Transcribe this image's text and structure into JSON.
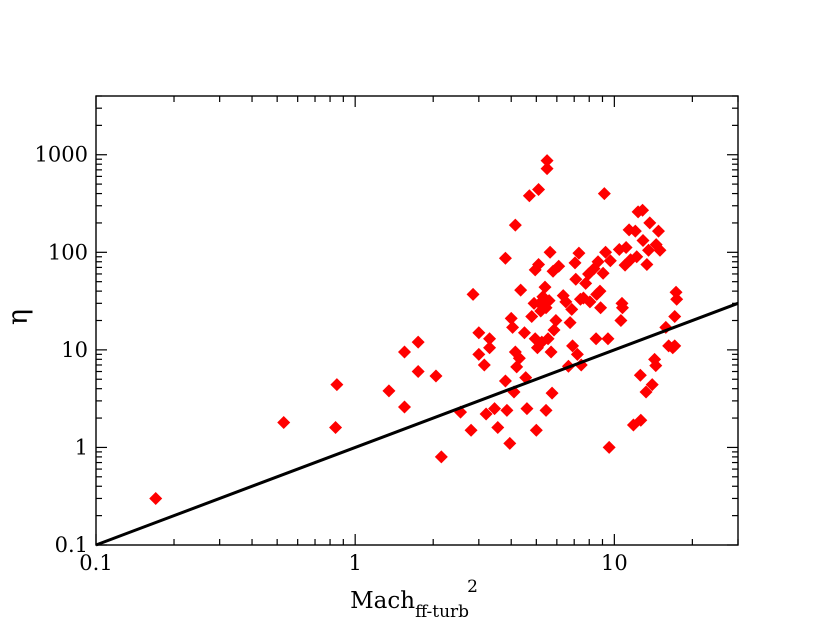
{
  "chart_data": {
    "type": "scatter",
    "title": "",
    "xlabel": "Mach",
    "xlabel_subscript": "ff-turb",
    "xlabel_superscript": "2",
    "ylabel": "η",
    "x_scale": "log",
    "y_scale": "log",
    "xlim": [
      0.1,
      30
    ],
    "ylim": [
      0.1,
      4000
    ],
    "grid": false,
    "legend": "none",
    "x_ticks": [
      {
        "value": 0.1,
        "label": "0.1"
      },
      {
        "value": 1,
        "label": "1"
      },
      {
        "value": 10,
        "label": "10"
      }
    ],
    "y_ticks": [
      {
        "value": 0.1,
        "label": "0.1"
      },
      {
        "value": 1,
        "label": "1"
      },
      {
        "value": 10,
        "label": "10"
      },
      {
        "value": 100,
        "label": "100"
      },
      {
        "value": 1000,
        "label": "1000"
      }
    ],
    "marker_color": "#ff0000",
    "line_color": "#000000",
    "line": {
      "points": [
        [
          0.1,
          0.1
        ],
        [
          30,
          30
        ]
      ]
    },
    "points": [
      [
        0.17,
        0.3
      ],
      [
        0.53,
        1.8
      ],
      [
        0.84,
        1.6
      ],
      [
        0.85,
        4.4
      ],
      [
        1.35,
        3.8
      ],
      [
        1.55,
        2.6
      ],
      [
        1.55,
        9.5
      ],
      [
        1.75,
        6.0
      ],
      [
        1.75,
        12.0
      ],
      [
        2.05,
        5.4
      ],
      [
        2.15,
        0.8
      ],
      [
        2.55,
        2.3
      ],
      [
        2.8,
        1.5
      ],
      [
        2.85,
        37
      ],
      [
        3.0,
        15
      ],
      [
        3.0,
        9.0
      ],
      [
        3.15,
        7.0
      ],
      [
        3.2,
        2.2
      ],
      [
        3.3,
        10.5
      ],
      [
        3.3,
        13
      ],
      [
        3.45,
        2.5
      ],
      [
        3.55,
        1.6
      ],
      [
        3.85,
        2.4
      ],
      [
        3.8,
        87
      ],
      [
        3.8,
        4.8
      ],
      [
        3.95,
        1.1
      ],
      [
        4.0,
        21
      ],
      [
        4.05,
        17
      ],
      [
        4.1,
        3.7
      ],
      [
        4.15,
        9.5
      ],
      [
        4.15,
        190
      ],
      [
        4.2,
        6.7
      ],
      [
        4.3,
        8.2
      ],
      [
        4.35,
        41
      ],
      [
        4.5,
        15
      ],
      [
        4.55,
        5.2
      ],
      [
        4.6,
        2.5
      ],
      [
        4.7,
        380
      ],
      [
        4.8,
        22
      ],
      [
        4.9,
        30
      ],
      [
        4.95,
        66
      ],
      [
        4.95,
        13
      ],
      [
        5.0,
        1.5
      ],
      [
        5.05,
        10.5
      ],
      [
        5.1,
        75
      ],
      [
        5.1,
        440
      ],
      [
        5.15,
        30
      ],
      [
        5.2,
        25
      ],
      [
        5.25,
        12
      ],
      [
        5.3,
        35
      ],
      [
        5.4,
        44
      ],
      [
        5.45,
        27
      ],
      [
        5.45,
        2.4
      ],
      [
        5.5,
        720
      ],
      [
        5.5,
        870
      ],
      [
        5.55,
        13
      ],
      [
        5.6,
        32
      ],
      [
        5.65,
        100
      ],
      [
        5.7,
        9.5
      ],
      [
        5.75,
        3.6
      ],
      [
        5.8,
        64
      ],
      [
        5.85,
        16
      ],
      [
        5.95,
        20
      ],
      [
        6.1,
        72
      ],
      [
        6.35,
        36
      ],
      [
        6.5,
        31
      ],
      [
        6.65,
        6.8
      ],
      [
        6.75,
        19
      ],
      [
        6.85,
        26
      ],
      [
        6.9,
        11
      ],
      [
        7.05,
        78
      ],
      [
        7.1,
        53
      ],
      [
        7.2,
        9.0
      ],
      [
        7.3,
        98
      ],
      [
        7.4,
        33
      ],
      [
        7.45,
        7.0
      ],
      [
        7.6,
        34
      ],
      [
        7.75,
        48
      ],
      [
        7.95,
        60
      ],
      [
        8.05,
        31
      ],
      [
        8.35,
        68
      ],
      [
        8.5,
        13
      ],
      [
        8.55,
        37
      ],
      [
        8.65,
        80
      ],
      [
        8.8,
        40
      ],
      [
        8.85,
        27
      ],
      [
        9.05,
        61
      ],
      [
        9.15,
        400
      ],
      [
        9.25,
        100
      ],
      [
        9.45,
        13
      ],
      [
        9.55,
        1.0
      ],
      [
        9.65,
        82
      ],
      [
        10.45,
        107
      ],
      [
        10.6,
        20
      ],
      [
        10.7,
        30
      ],
      [
        10.75,
        27
      ],
      [
        11.0,
        74
      ],
      [
        11.1,
        112
      ],
      [
        11.4,
        170
      ],
      [
        11.55,
        84
      ],
      [
        11.85,
        1.7
      ],
      [
        12.05,
        165
      ],
      [
        12.2,
        90
      ],
      [
        12.35,
        260
      ],
      [
        12.6,
        5.5
      ],
      [
        12.65,
        1.9
      ],
      [
        12.85,
        270
      ],
      [
        12.9,
        132
      ],
      [
        13.25,
        3.7
      ],
      [
        13.35,
        75
      ],
      [
        13.55,
        105
      ],
      [
        13.7,
        200
      ],
      [
        14.0,
        4.4
      ],
      [
        14.3,
        8.0
      ],
      [
        14.45,
        6.9
      ],
      [
        14.5,
        120
      ],
      [
        14.8,
        165
      ],
      [
        15.0,
        105
      ],
      [
        15.8,
        17
      ],
      [
        16.2,
        11
      ],
      [
        16.8,
        10.5
      ],
      [
        17.1,
        11
      ],
      [
        17.1,
        22
      ],
      [
        17.3,
        39
      ],
      [
        17.4,
        33
      ]
    ]
  }
}
